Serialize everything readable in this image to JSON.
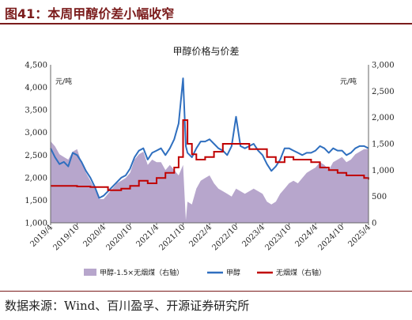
{
  "header": {
    "figure_title": "图41：本周甲醇价差小幅收窄",
    "source": "数据来源：Wind、百川盈孚、开源证券研究所"
  },
  "chart_data": {
    "type": "area+line",
    "title": "甲醇价格与价差",
    "left_unit": "元/吨",
    "right_unit": "元/吨",
    "left_axis": {
      "min": 1000,
      "max": 4500,
      "step": 500,
      "labels": [
        "1,000",
        "1,500",
        "2,000",
        "2,500",
        "3,000",
        "3,500",
        "4,000",
        "4,500"
      ]
    },
    "right_axis": {
      "min": 0,
      "max": 3000,
      "step": 500,
      "labels": [
        "0",
        "500",
        "1,000",
        "1,500",
        "2,000",
        "2,500",
        "3,000"
      ]
    },
    "x_labels": [
      "2019/4",
      "2019/10",
      "2020/4",
      "2020/10",
      "2021/4",
      "2021/10",
      "2022/4",
      "2022/10",
      "2023/4",
      "2023/10",
      "2024/4",
      "2024/10",
      "2025/4"
    ],
    "x_range": [
      "2019-04",
      "2025-04"
    ],
    "grid": false,
    "legend_position": "bottom",
    "colors": {
      "spread": "#b7a6cc",
      "methanol": "#2f6fbf",
      "coal": "#c00000",
      "accent": "#7b1c1c"
    },
    "series": [
      {
        "name": "甲醇-1.5×无烟煤（右轴）",
        "type": "area",
        "axis": "right",
        "x": [
          "2019-04",
          "2019-05",
          "2019-06",
          "2019-07",
          "2019-08",
          "2019-09",
          "2019-10",
          "2019-11",
          "2019-12",
          "2020-01",
          "2020-02",
          "2020-03",
          "2020-04",
          "2020-05",
          "2020-06",
          "2020-07",
          "2020-08",
          "2020-09",
          "2020-10",
          "2020-11",
          "2020-12",
          "2021-01",
          "2021-02",
          "2021-03",
          "2021-04",
          "2021-05",
          "2021-06",
          "2021-07",
          "2021-08",
          "2021-09",
          "2021-10",
          "2021-10-20",
          "2021-11",
          "2021-12",
          "2022-01",
          "2022-02",
          "2022-03",
          "2022-04",
          "2022-05",
          "2022-06",
          "2022-07",
          "2022-08",
          "2022-09",
          "2022-10",
          "2022-11",
          "2022-12",
          "2023-01",
          "2023-02",
          "2023-03",
          "2023-04",
          "2023-05",
          "2023-06",
          "2023-07",
          "2023-08",
          "2023-09",
          "2023-10",
          "2023-11",
          "2023-12",
          "2024-01",
          "2024-02",
          "2024-03",
          "2024-04",
          "2024-05",
          "2024-06",
          "2024-07",
          "2024-08",
          "2024-09",
          "2024-10",
          "2024-11",
          "2024-12",
          "2025-01",
          "2025-02",
          "2025-03",
          "2025-04"
        ],
        "values": [
          1550,
          1450,
          1300,
          1250,
          1200,
          1350,
          1400,
          1150,
          950,
          800,
          650,
          450,
          450,
          550,
          650,
          750,
          800,
          850,
          950,
          1200,
          1300,
          1350,
          1100,
          1200,
          1150,
          1150,
          1000,
          1100,
          1000,
          900,
          1100,
          50,
          400,
          350,
          650,
          800,
          850,
          900,
          750,
          650,
          600,
          550,
          500,
          650,
          600,
          550,
          600,
          650,
          600,
          550,
          400,
          350,
          400,
          550,
          650,
          750,
          800,
          750,
          850,
          950,
          1000,
          1050,
          1150,
          1100,
          1000,
          1150,
          1200,
          1250,
          1150,
          1200,
          1300,
          1350,
          1400,
          1400
        ]
      },
      {
        "name": "甲醇",
        "type": "line",
        "axis": "left",
        "x": [
          "2019-04",
          "2019-05",
          "2019-06",
          "2019-07",
          "2019-08",
          "2019-09",
          "2019-10",
          "2019-11",
          "2019-12",
          "2020-01",
          "2020-02",
          "2020-03",
          "2020-04",
          "2020-05",
          "2020-06",
          "2020-07",
          "2020-08",
          "2020-09",
          "2020-10",
          "2020-11",
          "2020-12",
          "2021-01",
          "2021-02",
          "2021-03",
          "2021-04",
          "2021-05",
          "2021-06",
          "2021-07",
          "2021-08",
          "2021-09",
          "2021-10",
          "2021-10-20",
          "2021-11",
          "2021-12",
          "2022-01",
          "2022-02",
          "2022-03",
          "2022-04",
          "2022-05",
          "2022-06",
          "2022-07",
          "2022-08",
          "2022-09",
          "2022-10",
          "2022-11",
          "2022-12",
          "2023-01",
          "2023-02",
          "2023-03",
          "2023-04",
          "2023-05",
          "2023-06",
          "2023-07",
          "2023-08",
          "2023-09",
          "2023-10",
          "2023-11",
          "2023-12",
          "2024-01",
          "2024-02",
          "2024-03",
          "2024-04",
          "2024-05",
          "2024-06",
          "2024-07",
          "2024-08",
          "2024-09",
          "2024-10",
          "2024-11",
          "2024-12",
          "2025-01",
          "2025-02",
          "2025-03",
          "2025-04"
        ],
        "values": [
          2650,
          2450,
          2300,
          2350,
          2250,
          2550,
          2500,
          2350,
          2150,
          2000,
          1800,
          1550,
          1600,
          1700,
          1800,
          1900,
          2000,
          2050,
          2200,
          2450,
          2600,
          2650,
          2400,
          2550,
          2600,
          2650,
          2500,
          2650,
          2850,
          3200,
          4200,
          2700,
          2550,
          2450,
          2650,
          2800,
          2800,
          2850,
          2750,
          2650,
          2600,
          2500,
          2700,
          3350,
          2700,
          2650,
          2700,
          2750,
          2600,
          2500,
          2300,
          2150,
          2250,
          2400,
          2650,
          2650,
          2600,
          2550,
          2500,
          2550,
          2550,
          2600,
          2700,
          2650,
          2550,
          2650,
          2600,
          2600,
          2500,
          2550,
          2650,
          2700,
          2700,
          2650
        ]
      },
      {
        "name": "无烟煤（右轴）",
        "type": "step",
        "axis": "right",
        "x": [
          "2019-04",
          "2019-07",
          "2019-10",
          "2020-01",
          "2020-03",
          "2020-05",
          "2020-08",
          "2020-10",
          "2020-12",
          "2021-02",
          "2021-04",
          "2021-06",
          "2021-08",
          "2021-09",
          "2021-10",
          "2021-11",
          "2021-12",
          "2022-01",
          "2022-03",
          "2022-05",
          "2022-07",
          "2022-09",
          "2022-11",
          "2023-01",
          "2023-03",
          "2023-05",
          "2023-07",
          "2023-09",
          "2023-11",
          "2024-01",
          "2024-03",
          "2024-05",
          "2024-07",
          "2024-09",
          "2024-11",
          "2025-01",
          "2025-03",
          "2025-04"
        ],
        "values": [
          700,
          700,
          690,
          680,
          680,
          620,
          650,
          700,
          800,
          750,
          850,
          950,
          1050,
          1250,
          1950,
          1500,
          1300,
          1200,
          1250,
          1350,
          1500,
          1500,
          1500,
          1400,
          1400,
          1250,
          1150,
          1250,
          1200,
          1200,
          1150,
          1050,
          1000,
          950,
          900,
          900,
          850,
          820
        ]
      }
    ]
  },
  "legend": [
    {
      "label": "甲醇-1.5×无烟煤（右轴）"
    },
    {
      "label": "甲醇"
    },
    {
      "label": "无烟煤（右轴）"
    }
  ]
}
